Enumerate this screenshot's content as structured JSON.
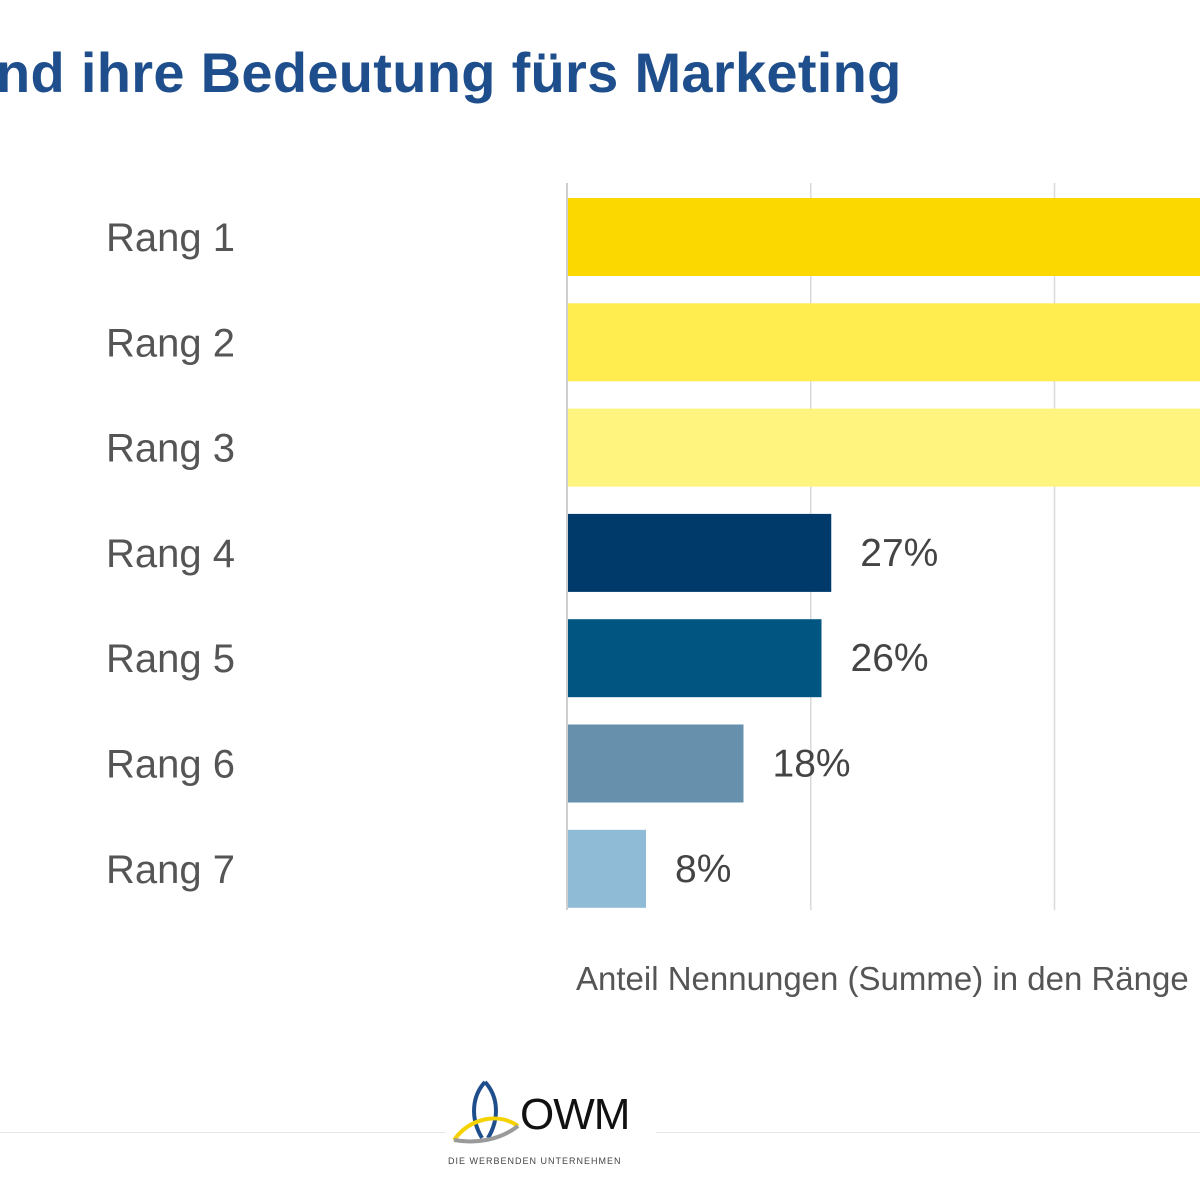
{
  "page": {
    "title": "nd ihre Bedeutung fürs Marketing"
  },
  "chart_data": {
    "type": "bar",
    "orientation": "horizontal",
    "categories": [
      "Rang 1",
      "Rang 2",
      "Rang 3",
      "Rang 4",
      "Rang 5",
      "Rang 6",
      "Rang 7"
    ],
    "values": [
      null,
      null,
      null,
      27,
      26,
      18,
      8
    ],
    "value_labels": [
      "",
      "",
      "",
      "27%",
      "26%",
      "18%",
      "8%"
    ],
    "bar_colors": [
      "#fbd900",
      "#ffed50",
      "#fff47e",
      "#003a6b",
      "#005680",
      "#6690ab",
      "#8fbbd6"
    ],
    "xlabel": "Anteil Nennungen (Summe) in den Ränge",
    "ylabel": "",
    "unit": "%",
    "grid": true,
    "legend": "none"
  },
  "logo": {
    "name": "OWM",
    "tagline": "DIE WERBENDEN UNTERNEHMEN",
    "icon": "owm-triangle-icon"
  }
}
